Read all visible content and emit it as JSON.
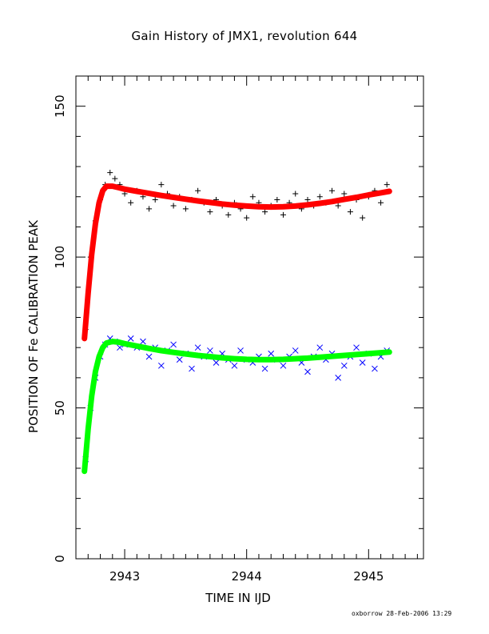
{
  "chart_data": {
    "type": "scatter",
    "title": "Gain History of JMX1, revolution 644",
    "xlabel": "TIME IN IJD",
    "ylabel": "POSITION OF Fe CALIBRATION PEAK",
    "xlim": [
      2942.6,
      2945.45
    ],
    "ylim": [
      0,
      160
    ],
    "xticks": [
      2943,
      2944,
      2945
    ],
    "yticks": [
      0,
      50,
      100,
      150
    ],
    "xtick_labels": [
      "2943",
      "2944",
      "2945"
    ],
    "ytick_labels": [
      "0",
      "50",
      "100",
      "150"
    ],
    "grid": false,
    "legend": "none",
    "series": [
      {
        "marker": "plus",
        "color": "#000000",
        "x": [
          2942.68,
          2942.72,
          2942.76,
          2942.8,
          2942.84,
          2942.88,
          2942.92,
          2942.96,
          2943.0,
          2943.05,
          2943.1,
          2943.15,
          2943.2,
          2943.25,
          2943.3,
          2943.35,
          2943.4,
          2943.45,
          2943.5,
          2943.55,
          2943.6,
          2943.65,
          2943.7,
          2943.75,
          2943.8,
          2943.85,
          2943.9,
          2943.95,
          2944.0,
          2944.05,
          2944.1,
          2944.15,
          2944.2,
          2944.25,
          2944.3,
          2944.35,
          2944.4,
          2944.45,
          2944.5,
          2944.55,
          2944.6,
          2944.65,
          2944.7,
          2944.75,
          2944.8,
          2944.85,
          2944.9,
          2944.95,
          2945.0,
          2945.05,
          2945.1,
          2945.15
        ],
        "y": [
          76,
          100,
          112,
          119,
          124,
          128,
          126,
          124,
          121,
          118,
          122,
          120,
          116,
          119,
          124,
          121,
          117,
          120,
          116,
          119,
          122,
          118,
          115,
          119,
          117,
          114,
          118,
          116,
          113,
          120,
          118,
          115,
          117,
          119,
          114,
          118,
          121,
          116,
          119,
          117,
          120,
          118,
          122,
          117,
          121,
          115,
          119,
          113,
          120,
          122,
          118,
          124
        ]
      },
      {
        "marker": "line",
        "color": "#ff0000",
        "x": [
          2942.67,
          2942.7,
          2942.73,
          2942.76,
          2942.79,
          2942.82,
          2942.85,
          2942.9,
          2942.95,
          2943.0,
          2943.1,
          2943.2,
          2943.3,
          2943.4,
          2943.5,
          2943.6,
          2943.7,
          2943.8,
          2943.9,
          2944.0,
          2944.1,
          2944.2,
          2944.3,
          2944.4,
          2944.5,
          2944.6,
          2944.7,
          2944.8,
          2944.9,
          2945.0,
          2945.1,
          2945.17
        ],
        "y": [
          73,
          88,
          101,
          111,
          118,
          122,
          123.5,
          123.5,
          123,
          122.5,
          121.8,
          121.1,
          120.4,
          119.8,
          119.2,
          118.6,
          118.1,
          117.6,
          117.2,
          116.9,
          116.7,
          116.6,
          116.7,
          116.9,
          117.3,
          117.8,
          118.4,
          119.1,
          119.8,
          120.6,
          121.3,
          121.8
        ]
      },
      {
        "marker": "cross",
        "color": "#0000ff",
        "x": [
          2942.68,
          2942.72,
          2942.76,
          2942.8,
          2942.84,
          2942.88,
          2942.92,
          2942.96,
          2943.0,
          2943.05,
          2943.1,
          2943.15,
          2943.2,
          2943.25,
          2943.3,
          2943.35,
          2943.4,
          2943.45,
          2943.5,
          2943.55,
          2943.6,
          2943.65,
          2943.7,
          2943.75,
          2943.8,
          2943.85,
          2943.9,
          2943.95,
          2944.0,
          2944.05,
          2944.1,
          2944.15,
          2944.2,
          2944.25,
          2944.3,
          2944.35,
          2944.4,
          2944.45,
          2944.5,
          2944.55,
          2944.6,
          2944.65,
          2944.7,
          2944.75,
          2944.8,
          2944.85,
          2944.9,
          2944.95,
          2945.0,
          2945.05,
          2945.1,
          2945.15
        ],
        "y": [
          33,
          50,
          60,
          67,
          71,
          73,
          72,
          70,
          71,
          73,
          70,
          72,
          67,
          70,
          64,
          69,
          71,
          66,
          68,
          63,
          70,
          67,
          69,
          65,
          68,
          66,
          64,
          69,
          66,
          65,
          67,
          63,
          68,
          66,
          64,
          67,
          69,
          65,
          62,
          67,
          70,
          66,
          68,
          60,
          64,
          67,
          70,
          65,
          68,
          63,
          67,
          69
        ]
      },
      {
        "marker": "line",
        "color": "#00ff00",
        "x": [
          2942.67,
          2942.7,
          2942.73,
          2942.76,
          2942.79,
          2942.82,
          2942.85,
          2942.9,
          2942.95,
          2943.0,
          2943.1,
          2943.2,
          2943.3,
          2943.4,
          2943.5,
          2943.6,
          2943.7,
          2943.8,
          2943.9,
          2944.0,
          2944.1,
          2944.2,
          2944.3,
          2944.4,
          2944.5,
          2944.6,
          2944.7,
          2944.8,
          2944.9,
          2945.0,
          2945.1,
          2945.17
        ],
        "y": [
          29,
          43,
          54,
          62,
          67,
          70,
          71.5,
          72,
          71.8,
          71.3,
          70.5,
          69.7,
          69.0,
          68.4,
          67.9,
          67.4,
          67.0,
          66.6,
          66.3,
          66.1,
          66.0,
          66.0,
          66.1,
          66.3,
          66.5,
          66.8,
          67.1,
          67.4,
          67.7,
          68.0,
          68.3,
          68.5
        ]
      }
    ]
  },
  "footer": {
    "stamp": "oxborrow 28-Feb-2006 13:29"
  }
}
